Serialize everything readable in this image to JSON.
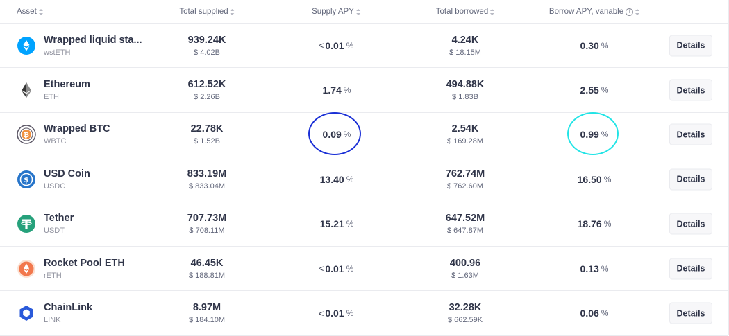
{
  "header": {
    "asset": "Asset",
    "total_supplied": "Total supplied",
    "supply_apy": "Supply APY",
    "total_borrowed": "Total borrowed",
    "borrow_apy": "Borrow APY, variable"
  },
  "rows": [
    {
      "name": "Wrapped liquid sta...",
      "symbol": "wstETH",
      "supplied": "939.24K",
      "supplied_usd": "$ 4.02B",
      "supply_apy_prefix": "<",
      "supply_apy": "0.01",
      "borrowed": "4.24K",
      "borrowed_usd": "$ 18.15M",
      "borrow_apy": "0.30",
      "icon": "wsteth-icon"
    },
    {
      "name": "Ethereum",
      "symbol": "ETH",
      "supplied": "612.52K",
      "supplied_usd": "$ 2.26B",
      "supply_apy_prefix": "",
      "supply_apy": "1.74",
      "borrowed": "494.88K",
      "borrowed_usd": "$ 1.83B",
      "borrow_apy": "2.55",
      "icon": "eth-icon"
    },
    {
      "name": "Wrapped BTC",
      "symbol": "WBTC",
      "supplied": "22.78K",
      "supplied_usd": "$ 1.52B",
      "supply_apy_prefix": "",
      "supply_apy": "0.09",
      "borrowed": "2.54K",
      "borrowed_usd": "$ 169.28M",
      "borrow_apy": "0.99",
      "icon": "wbtc-icon"
    },
    {
      "name": "USD Coin",
      "symbol": "USDC",
      "supplied": "833.19M",
      "supplied_usd": "$ 833.04M",
      "supply_apy_prefix": "",
      "supply_apy": "13.40",
      "borrowed": "762.74M",
      "borrowed_usd": "$ 762.60M",
      "borrow_apy": "16.50",
      "icon": "usdc-icon"
    },
    {
      "name": "Tether",
      "symbol": "USDT",
      "supplied": "707.73M",
      "supplied_usd": "$ 708.11M",
      "supply_apy_prefix": "",
      "supply_apy": "15.21",
      "borrowed": "647.52M",
      "borrowed_usd": "$ 647.87M",
      "borrow_apy": "18.76",
      "icon": "usdt-icon"
    },
    {
      "name": "Rocket Pool ETH",
      "symbol": "rETH",
      "supplied": "46.45K",
      "supplied_usd": "$ 188.81M",
      "supply_apy_prefix": "<",
      "supply_apy": "0.01",
      "borrowed": "400.96",
      "borrowed_usd": "$ 1.63M",
      "borrow_apy": "0.13",
      "icon": "reth-icon"
    },
    {
      "name": "ChainLink",
      "symbol": "LINK",
      "supplied": "8.97M",
      "supplied_usd": "$ 184.10M",
      "supply_apy_prefix": "<",
      "supply_apy": "0.01",
      "borrowed": "32.28K",
      "borrowed_usd": "$ 662.59K",
      "borrow_apy": "0.06",
      "icon": "link-icon"
    }
  ],
  "percent_sign": "%",
  "details_label": "Details",
  "info_glyph": "i",
  "highlights": {
    "supply_circle_color": "#1a2fd6",
    "borrow_circle_color": "#22e4e6"
  }
}
